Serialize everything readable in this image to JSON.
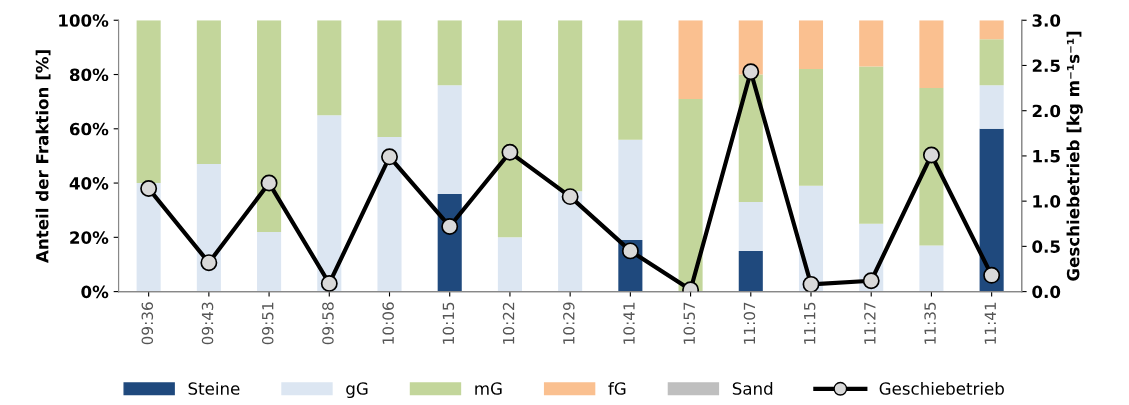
{
  "chart_data": {
    "type": "bar",
    "stacked": true,
    "ylabel": "Anteil der Fraktion [%]",
    "y2label": "Geschiebetrieb [kg m⁻¹s⁻¹]",
    "categories": [
      "09:36",
      "09:43",
      "09:51",
      "09:58",
      "10:06",
      "10:15",
      "10:22",
      "10:29",
      "10:41",
      "10:57",
      "11:07",
      "11:15",
      "11:27",
      "11:35",
      "11:41"
    ],
    "ylim": [
      0,
      100
    ],
    "yticks": [
      {
        "value": 0,
        "label": "0%"
      },
      {
        "value": 20,
        "label": "20%"
      },
      {
        "value": 40,
        "label": "40%"
      },
      {
        "value": 60,
        "label": "60%"
      },
      {
        "value": 80,
        "label": "80%"
      },
      {
        "value": 100,
        "label": "100%"
      }
    ],
    "y2lim": [
      0,
      3
    ],
    "y2ticks": [
      {
        "value": 0,
        "label": "0.0"
      },
      {
        "value": 0.5,
        "label": "0.5"
      },
      {
        "value": 1,
        "label": "1.0"
      },
      {
        "value": 1.5,
        "label": "1.5"
      },
      {
        "value": 2,
        "label": "2.0"
      },
      {
        "value": 2.5,
        "label": "2.5"
      },
      {
        "value": 3,
        "label": "3.0"
      }
    ],
    "grid": false,
    "legend": "bottom",
    "series": [
      {
        "name": "Steine",
        "color": "#1f497d",
        "values": [
          0,
          0,
          0,
          0,
          0,
          36,
          0,
          0,
          19,
          0,
          15,
          0,
          0,
          0,
          60
        ]
      },
      {
        "name": "gG",
        "color": "#dce6f2",
        "values": [
          40,
          47,
          22,
          65,
          57,
          40,
          20,
          37,
          37,
          0,
          18,
          39,
          25,
          17,
          16
        ]
      },
      {
        "name": "mG",
        "color": "#c3d69b",
        "values": [
          60,
          53,
          78,
          35,
          43,
          24,
          80,
          63,
          44,
          71,
          47,
          43,
          58,
          58,
          17
        ]
      },
      {
        "name": "fG",
        "color": "#fac090",
        "values": [
          0,
          0,
          0,
          0,
          0,
          0,
          0,
          0,
          0,
          29,
          20,
          18,
          17,
          25,
          7
        ]
      },
      {
        "name": "Sand",
        "color": "#bfbfbf",
        "values": [
          0,
          0,
          0,
          0,
          0,
          0,
          0,
          0,
          0,
          0,
          0,
          0,
          0,
          0,
          0
        ]
      },
      {
        "name": "Geschiebetrieb",
        "type": "line",
        "axis": "y2",
        "color": "#000000",
        "marker": "circle",
        "line_style": "solid",
        "values": [
          1.14,
          0.32,
          1.2,
          0.09,
          1.49,
          0.72,
          1.54,
          1.05,
          0.45,
          0.02,
          2.43,
          0.08,
          0.12,
          1.51,
          0.18
        ]
      }
    ]
  }
}
